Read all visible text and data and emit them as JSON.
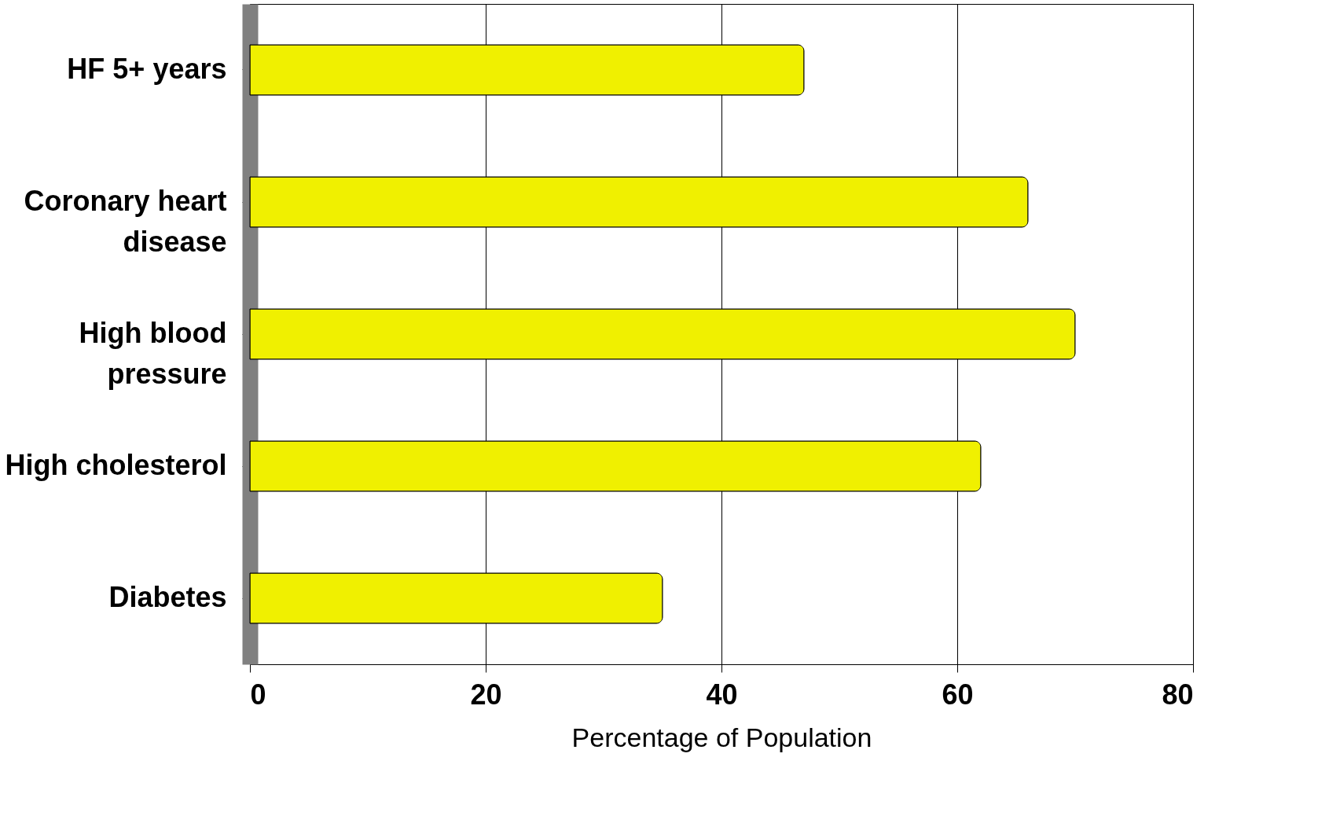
{
  "chart_data": {
    "type": "bar",
    "orientation": "horizontal",
    "xlabel": "Percentage of Population",
    "categories": [
      "HF 5+ years",
      "Coronary heart disease",
      "High blood pressure",
      "High cholesterol",
      "Diabetes"
    ],
    "values": [
      47,
      66,
      70,
      62,
      35
    ],
    "color": "#f0f000",
    "xlim": [
      0,
      80
    ],
    "xticks": [
      0,
      20,
      40,
      60,
      80
    ],
    "grid": "x"
  }
}
